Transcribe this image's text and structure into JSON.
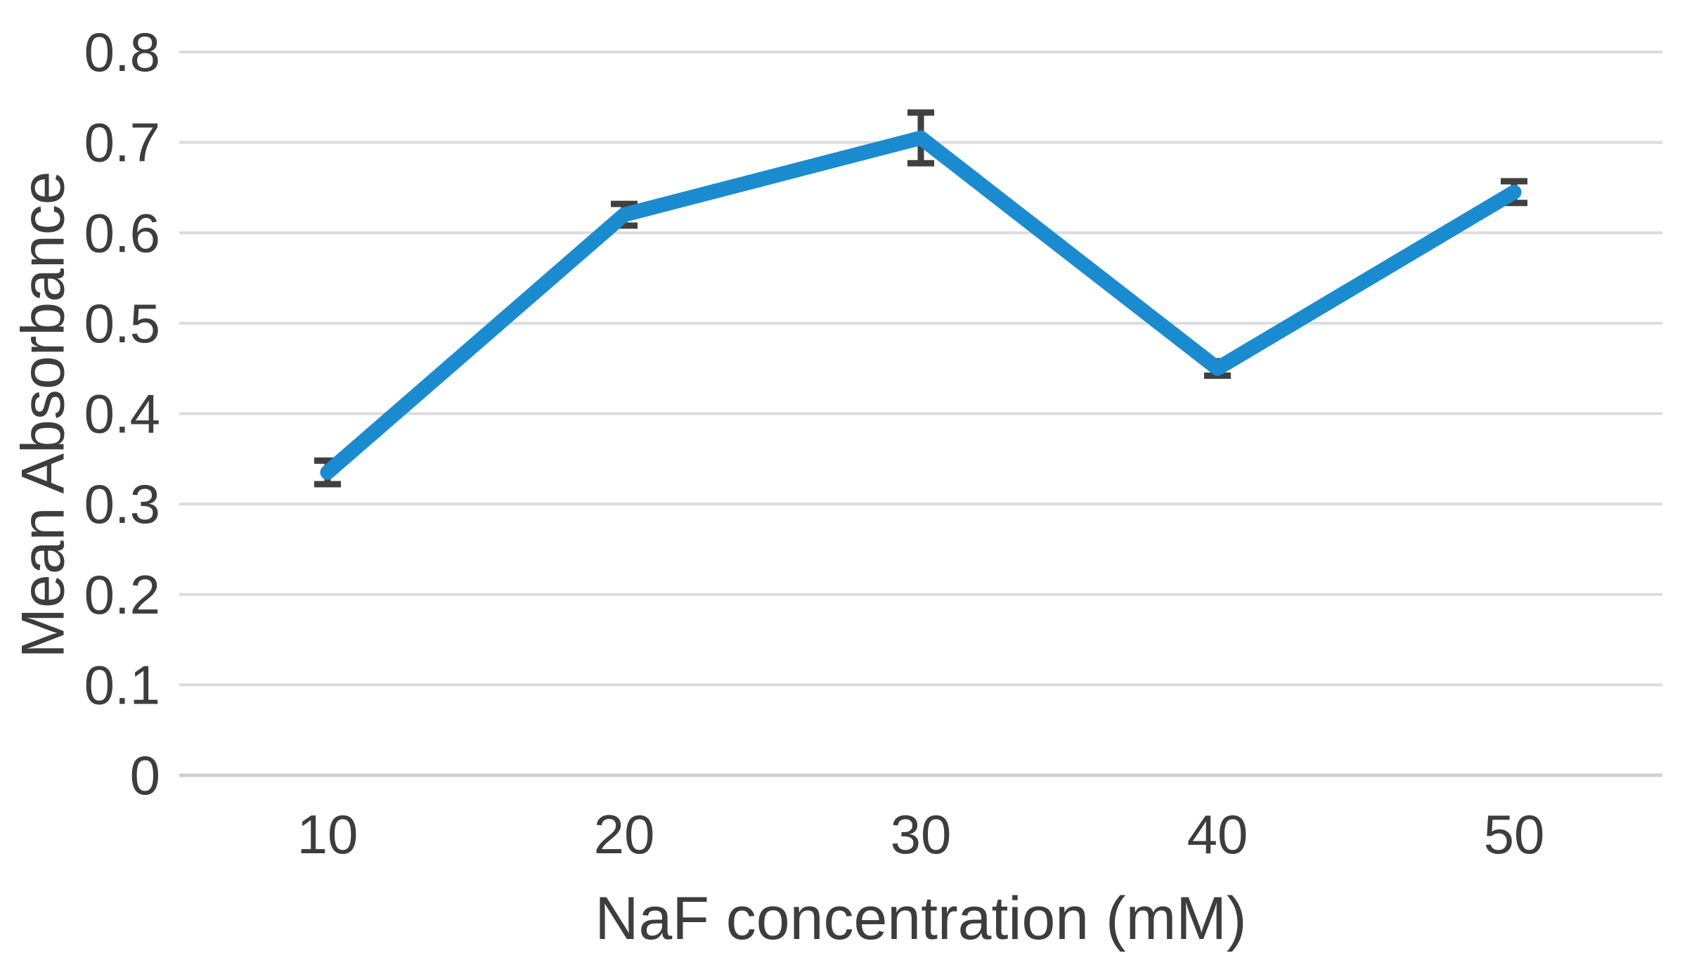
{
  "chart_data": {
    "type": "line",
    "title": "",
    "categories": [
      "10",
      "20",
      "30",
      "40",
      "50"
    ],
    "x_values": [
      10,
      20,
      30,
      40,
      50
    ],
    "series": [
      {
        "name": "Mean Absorbance",
        "values": [
          0.335,
          0.62,
          0.705,
          0.45,
          0.645
        ],
        "error_bars": [
          0.013,
          0.012,
          0.028,
          0.008,
          0.012
        ]
      }
    ],
    "xlabel": "NaF concentration (mM)",
    "ylabel": "Mean Absorbance",
    "ylim": [
      0,
      0.8
    ],
    "y_ticks": [
      0,
      0.1,
      0.2,
      0.3,
      0.4,
      0.5,
      0.6,
      0.7,
      0.8
    ],
    "y_tick_labels": [
      "0",
      "0.1",
      "0.2",
      "0.3",
      "0.4",
      "0.5",
      "0.6",
      "0.7",
      "0.8"
    ],
    "grid": "horizontal",
    "legend": "none",
    "colors": {
      "line": "#1b8bd0",
      "error_bar": "#404040",
      "gridline": "#dcdcdc",
      "zero_line": "#cfcfcf",
      "tick_text": "#3d3d3d",
      "axis_title_text": "#3d3d3d",
      "background": "#ffffff"
    }
  }
}
